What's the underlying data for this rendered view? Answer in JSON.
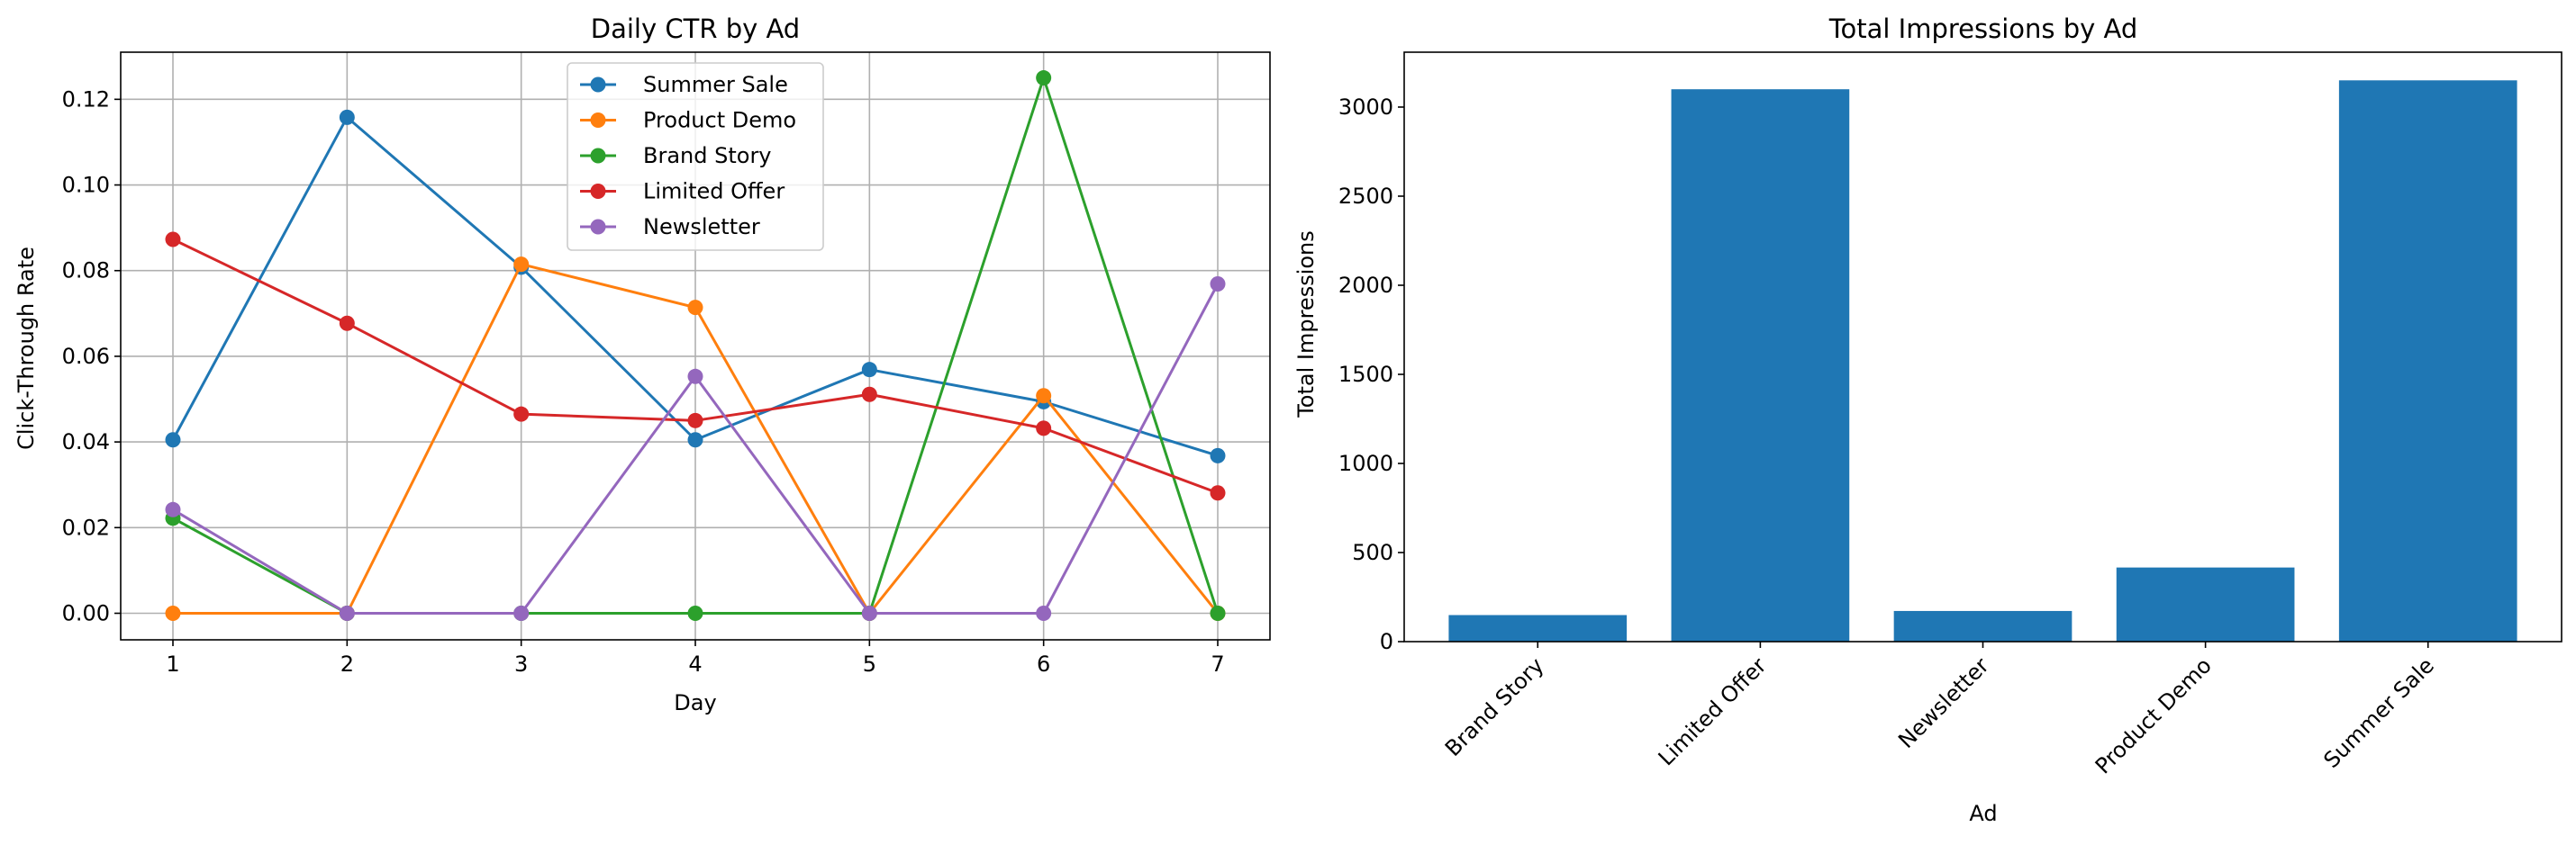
{
  "chart_data": [
    {
      "type": "line",
      "title": "Daily CTR by Ad",
      "xlabel": "Day",
      "ylabel": "Click-Through Rate",
      "x": [
        1,
        2,
        3,
        4,
        5,
        6,
        7
      ],
      "xlim": [
        0.7,
        7.3
      ],
      "ylim": [
        -0.0062,
        0.131
      ],
      "yticks": [
        "0.00",
        "0.02",
        "0.04",
        "0.06",
        "0.08",
        "0.10",
        "0.12"
      ],
      "ytick_values": [
        0,
        0.02,
        0.04,
        0.06,
        0.08,
        0.1,
        0.12
      ],
      "grid": true,
      "legend": "upper center",
      "series": [
        {
          "name": "Summer Sale",
          "color": "#1f77b4",
          "values": [
            0.0405,
            0.1158,
            0.0808,
            0.0405,
            0.0569,
            0.0494,
            0.0368
          ]
        },
        {
          "name": "Product Demo",
          "color": "#ff7f0e",
          "values": [
            0.0,
            0.0,
            0.0815,
            0.0714,
            0.0,
            0.0508,
            0.0
          ]
        },
        {
          "name": "Brand Story",
          "color": "#2ca02c",
          "values": [
            0.0222,
            0.0,
            0.0,
            0.0,
            0.0,
            0.125,
            0.0
          ]
        },
        {
          "name": "Limited Offer",
          "color": "#d62728",
          "values": [
            0.0873,
            0.0677,
            0.0465,
            0.045,
            0.0511,
            0.0432,
            0.0281
          ]
        },
        {
          "name": "Newsletter",
          "color": "#9467bd",
          "values": [
            0.0242,
            0.0,
            0.0,
            0.0553,
            0.0,
            0.0,
            0.0769
          ]
        }
      ]
    },
    {
      "type": "bar",
      "title": "Total Impressions by Ad",
      "xlabel": "Ad",
      "ylabel": "Total Impressions",
      "categories": [
        "Brand Story",
        "Limited Offer",
        "Newsletter",
        "Product Demo",
        "Summer Sale"
      ],
      "values": [
        149,
        3100,
        172,
        416,
        3150
      ],
      "color": "#1f77b4",
      "ylim": [
        0,
        3308
      ],
      "yticks": [
        "0",
        "500",
        "1000",
        "1500",
        "2000",
        "2500",
        "3000"
      ],
      "ytick_values": [
        0,
        500,
        1000,
        1500,
        2000,
        2500,
        3000
      ],
      "grid": false
    }
  ]
}
